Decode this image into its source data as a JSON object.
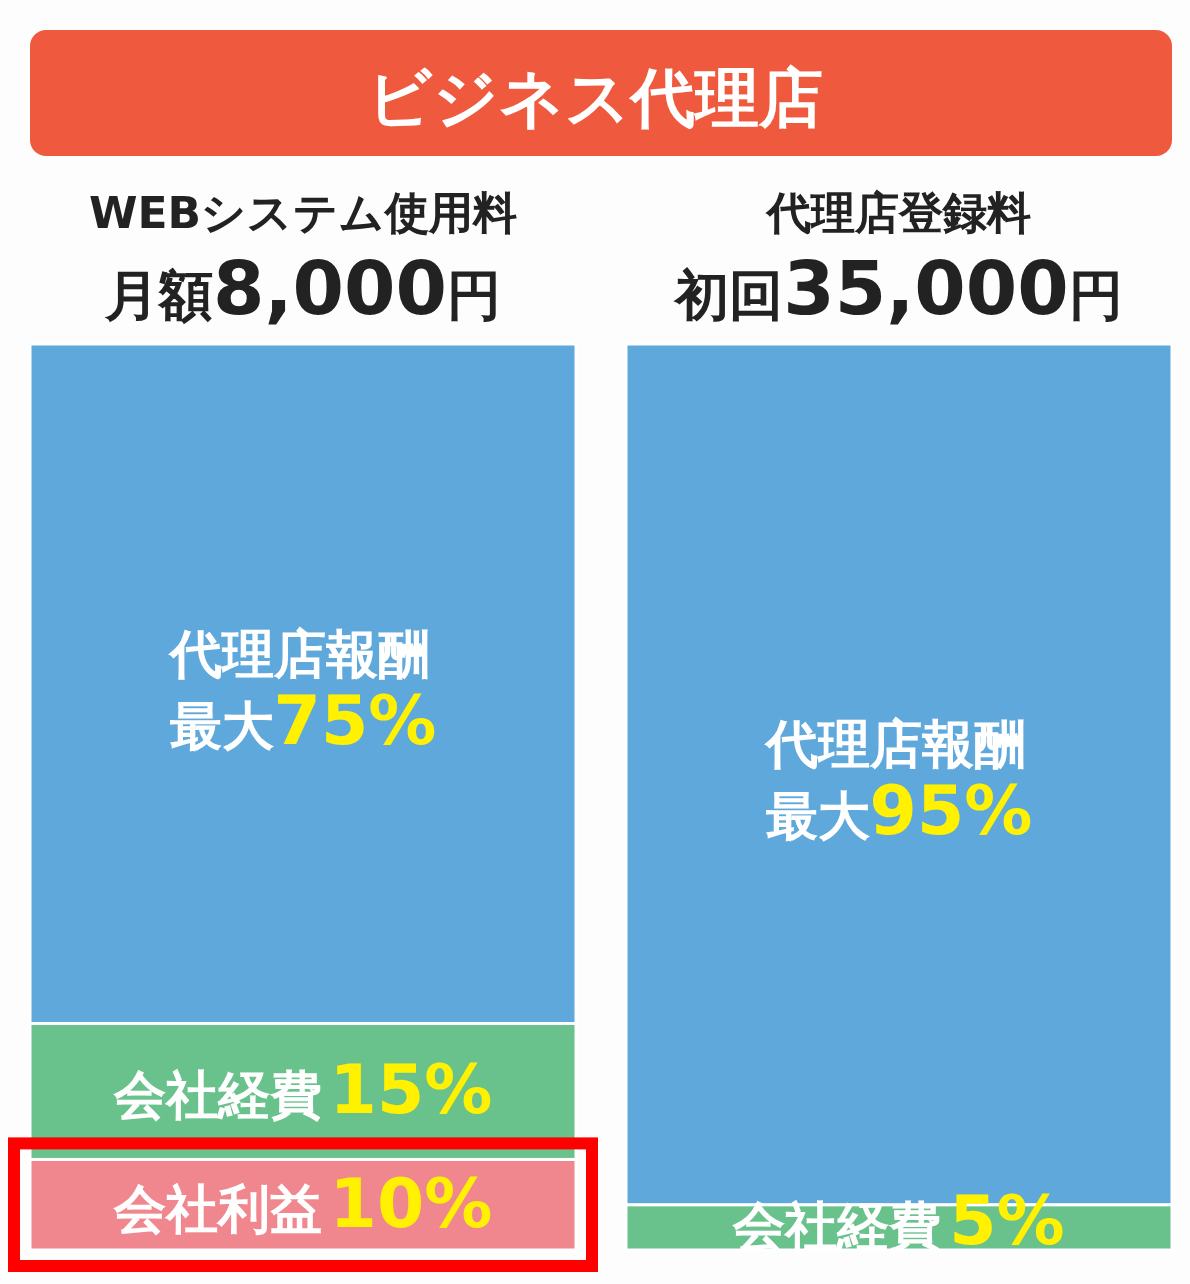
{
  "chart_data": {
    "type": "bar",
    "title": "ビジネス代理店",
    "categories": [
      "WEBシステム使用料",
      "代理店登録料"
    ],
    "stacked": true,
    "annotations": [
      "月額8,000円",
      "初回35,000円"
    ],
    "series": [
      {
        "name": "会社利益",
        "color": "#f0868e",
        "values": [
          10,
          null
        ],
        "value_labels": [
          "10%",
          null
        ]
      },
      {
        "name": "会社経費",
        "color": "#69c18b",
        "values": [
          15,
          5
        ],
        "value_labels": [
          "15%",
          "5%"
        ]
      },
      {
        "name": "代理店報酬",
        "color": "#5fa8dc",
        "values": [
          75,
          95
        ],
        "value_labels": [
          "最大75%",
          "最大95%"
        ]
      }
    ]
  }
}
